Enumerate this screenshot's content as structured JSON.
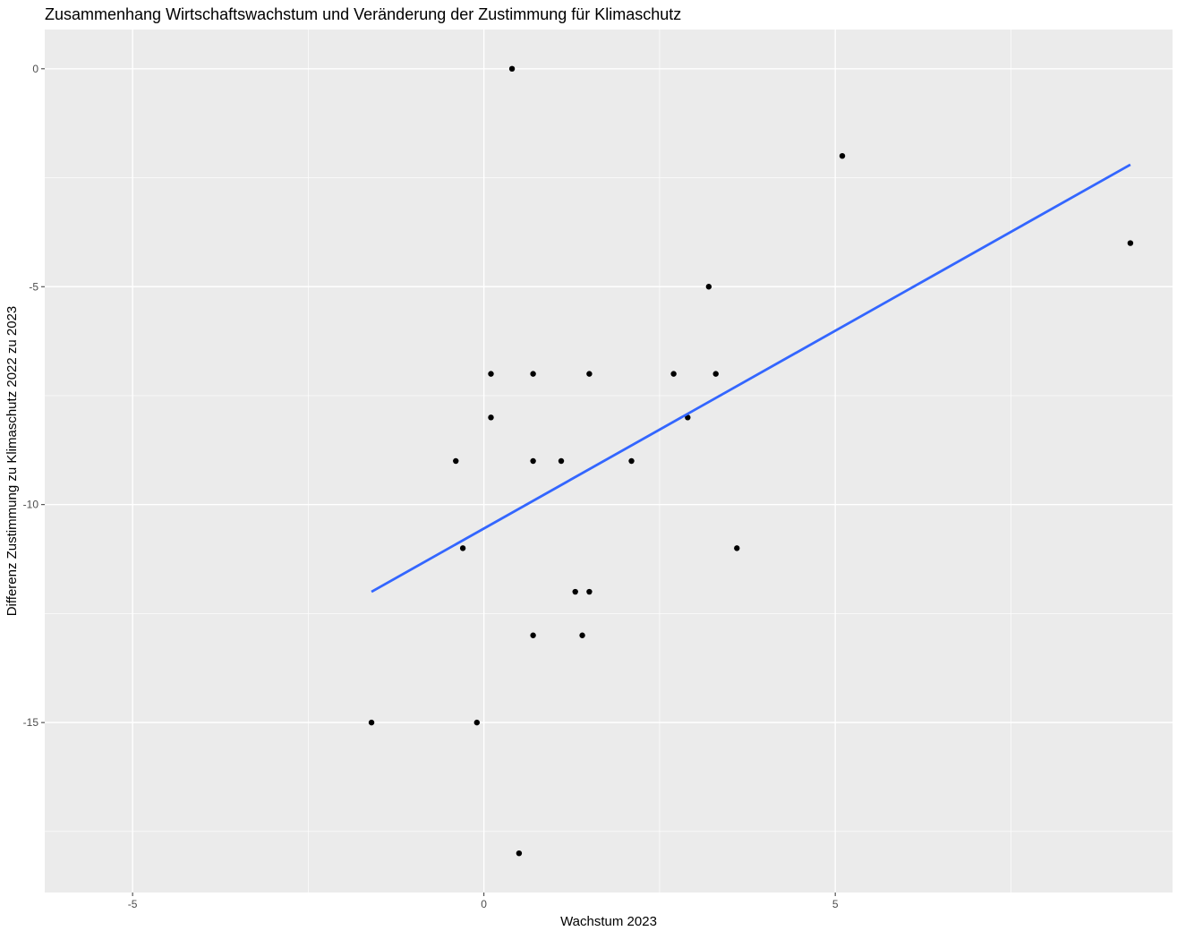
{
  "chart_data": {
    "type": "scatter",
    "title": "Zusammenhang Wirtschaftswachstum und Veränderung der Zustimmung für Klimaschutz",
    "xlabel": "Wachstum 2023",
    "ylabel": "Differenz Zustimmung zu Klimaschutz 2022 zu 2023",
    "xlim": [
      -6.25,
      9.8
    ],
    "ylim": [
      -18.9,
      0.9
    ],
    "x_major_ticks": [
      -5,
      0,
      5
    ],
    "x_minor_ticks": [
      -7.5,
      -2.5,
      2.5,
      7.5
    ],
    "y_major_ticks": [
      -15,
      -10,
      -5,
      0
    ],
    "y_minor_ticks": [
      -17.5,
      -12.5,
      -7.5,
      -2.5
    ],
    "x_tick_labels": [
      "-5",
      "0",
      "5"
    ],
    "y_tick_labels": [
      "-15",
      "-10",
      "-5",
      "0"
    ],
    "grid": true,
    "legend": "none",
    "colors": {
      "panel_background": "#ebebeb",
      "grid_line": "#ffffff",
      "point": "#000000",
      "trend_line": "#3366ff",
      "tick_mark": "#333333"
    },
    "points": [
      {
        "x": 0.4,
        "y": 0
      },
      {
        "x": 5.1,
        "y": -2
      },
      {
        "x": 9.2,
        "y": -4
      },
      {
        "x": 3.2,
        "y": -5
      },
      {
        "x": 0.1,
        "y": -7
      },
      {
        "x": 0.7,
        "y": -7
      },
      {
        "x": 1.5,
        "y": -7
      },
      {
        "x": 2.7,
        "y": -7
      },
      {
        "x": 3.3,
        "y": -7
      },
      {
        "x": 0.1,
        "y": -8
      },
      {
        "x": 2.9,
        "y": -8
      },
      {
        "x": -0.4,
        "y": -9
      },
      {
        "x": 0.7,
        "y": -9
      },
      {
        "x": 1.1,
        "y": -9
      },
      {
        "x": 2.1,
        "y": -9
      },
      {
        "x": -0.3,
        "y": -11
      },
      {
        "x": 3.6,
        "y": -11
      },
      {
        "x": 1.3,
        "y": -12
      },
      {
        "x": 1.5,
        "y": -12
      },
      {
        "x": 0.7,
        "y": -13
      },
      {
        "x": 1.4,
        "y": -13
      },
      {
        "x": -1.6,
        "y": -15
      },
      {
        "x": -0.1,
        "y": -15
      },
      {
        "x": 0.5,
        "y": -18
      }
    ],
    "trend_line": {
      "method": "linear",
      "x": [
        -1.6,
        9.2
      ],
      "y": [
        -12.0,
        -2.2
      ]
    }
  }
}
